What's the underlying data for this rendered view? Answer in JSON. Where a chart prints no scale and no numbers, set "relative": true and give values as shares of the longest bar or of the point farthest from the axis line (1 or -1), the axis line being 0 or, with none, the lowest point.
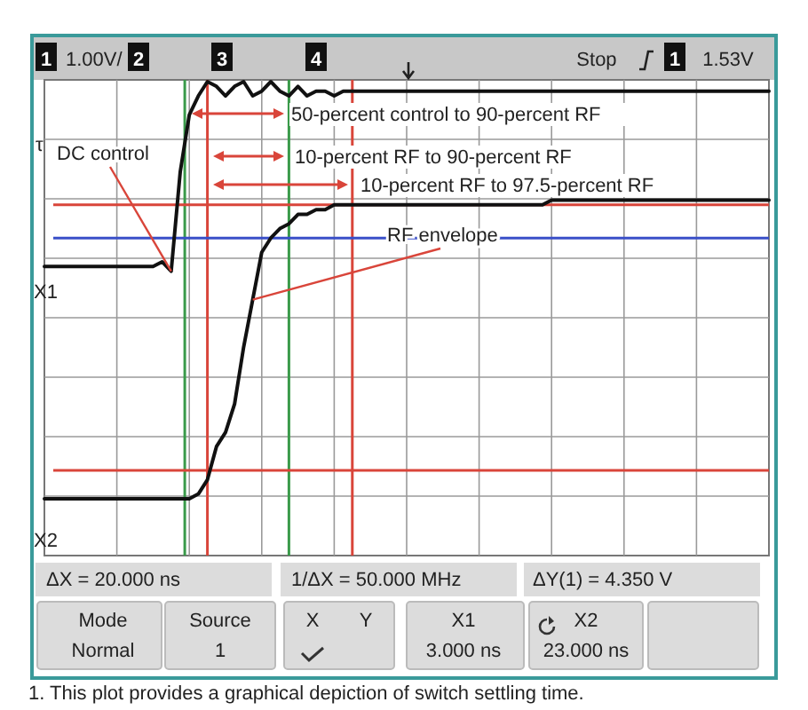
{
  "chart_data": {
    "type": "line",
    "relative": true,
    "categories": [
      null,
      null,
      null,
      null,
      null,
      null,
      null,
      null,
      null,
      null,
      null,
      null,
      null,
      null,
      null,
      null,
      null,
      null,
      null,
      null,
      null,
      null,
      null,
      null,
      null,
      null,
      null,
      null,
      null,
      null,
      null,
      null,
      null,
      null,
      null,
      null,
      null,
      null,
      null,
      null,
      null,
      null,
      null,
      null,
      null,
      null,
      null,
      null,
      null,
      null,
      null,
      null,
      null,
      null,
      null,
      null,
      null,
      null,
      null,
      null,
      null,
      null,
      null,
      null,
      null,
      null,
      null,
      null,
      null,
      null,
      null,
      null,
      null,
      null,
      null,
      null,
      null,
      null,
      null,
      null,
      null
    ],
    "grid": true,
    "legend": false,
    "marker": "none",
    "line_style": "solid",
    "series": [
      {
        "name": "DC control",
        "color": "#111111",
        "values": [
          0.61,
          0.61,
          0.61,
          0.61,
          0.61,
          0.61,
          0.61,
          0.61,
          0.61,
          0.61,
          0.61,
          0.61,
          0.61,
          0.62,
          0.6,
          0.81,
          0.93,
          0.97,
          1,
          0.99,
          0.97,
          0.99,
          1,
          0.97,
          0.98,
          1,
          0.98,
          0.97,
          0.99,
          0.97,
          0.98,
          0.98,
          0.97,
          0.98,
          0.98,
          0.98,
          0.98,
          0.98,
          0.98,
          0.98,
          0.98,
          0.98,
          0.98,
          0.98,
          0.98,
          0.98,
          0.98,
          0.98,
          0.98,
          0.98,
          0.98,
          0.98,
          0.98,
          0.98,
          0.98,
          0.98,
          0.98,
          0.98,
          0.98,
          0.98,
          0.98,
          0.98,
          0.98,
          0.98,
          0.98,
          0.98,
          0.98,
          0.98,
          0.98,
          0.98,
          0.98,
          0.98,
          0.98,
          0.98,
          0.98,
          0.98,
          0.98,
          0.98,
          0.98,
          0.98,
          0.98
        ]
      },
      {
        "name": "RF envelope",
        "color": "#111111",
        "values": [
          0.12,
          0.12,
          0.12,
          0.12,
          0.12,
          0.12,
          0.12,
          0.12,
          0.12,
          0.12,
          0.12,
          0.12,
          0.12,
          0.12,
          0.12,
          0.12,
          0.12,
          0.13,
          0.16,
          0.23,
          0.26,
          0.32,
          0.44,
          0.54,
          0.64,
          0.67,
          0.69,
          0.7,
          0.72,
          0.72,
          0.73,
          0.73,
          0.74,
          0.74,
          0.74,
          0.74,
          0.74,
          0.74,
          0.74,
          0.74,
          0.74,
          0.74,
          0.74,
          0.74,
          0.74,
          0.74,
          0.74,
          0.74,
          0.74,
          0.74,
          0.74,
          0.74,
          0.74,
          0.74,
          0.74,
          0.74,
          0.75,
          0.75,
          0.75,
          0.75,
          0.75,
          0.75,
          0.75,
          0.75,
          0.75,
          0.75,
          0.75,
          0.75,
          0.75,
          0.75,
          0.75,
          0.75,
          0.75,
          0.75,
          0.75,
          0.75,
          0.75,
          0.75,
          0.75,
          0.75,
          0.75
        ]
      }
    ],
    "ref_lines": [
      {
        "axis": "y",
        "value": 0.74,
        "color": "#d9453a"
      },
      {
        "axis": "y",
        "value": 0.67,
        "color": "#3a4fc8"
      },
      {
        "axis": "y",
        "value": 0.18,
        "color": "#d9453a"
      }
    ],
    "annotations": [
      "1",
      "1.00V/",
      "2",
      "3",
      "4",
      "Stop",
      "1",
      "1.53V",
      "τ",
      "X1",
      "X2",
      "50-percent control to 90-percent RF",
      "10-percent RF to 90-percent RF",
      "10-percent RF to 97.5-percent RF",
      "ΔX = 20.000 ns",
      "1/ΔX = 50.000 MHz",
      "ΔY(1) = 4.350 V",
      "Mode",
      "Normal",
      "Source",
      "1",
      "X",
      "Y",
      "X1",
      "3.000 ns",
      "X2",
      "23.000 ns",
      "1. This plot provides a graphical depiction of switch settling time."
    ]
  }
}
